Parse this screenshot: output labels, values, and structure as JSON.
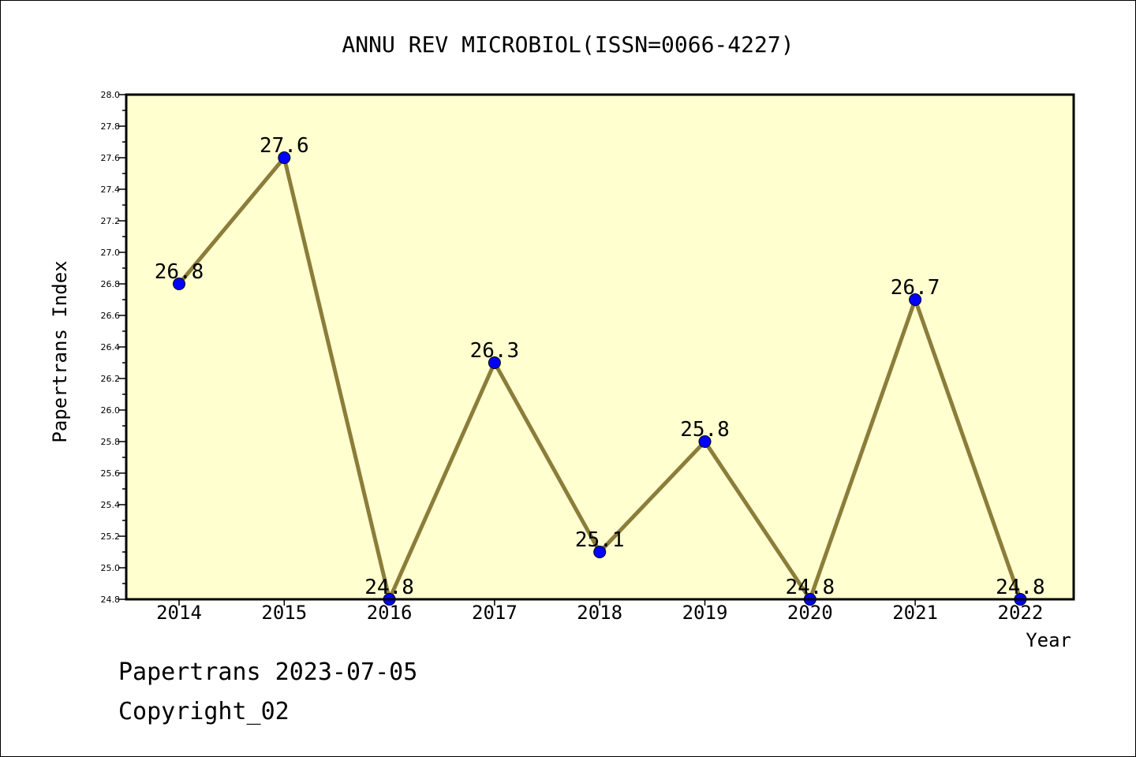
{
  "chart_data": {
    "type": "line",
    "title": "ANNU REV MICROBIOL(ISSN=0066-4227)",
    "xlabel": "Year",
    "ylabel": "Papertrans Index",
    "categories": [
      "2014",
      "2015",
      "2016",
      "2017",
      "2018",
      "2019",
      "2020",
      "2021",
      "2022"
    ],
    "values": [
      26.8,
      27.6,
      24.8,
      26.3,
      25.1,
      25.8,
      24.8,
      26.7,
      24.8
    ],
    "data_labels": [
      "26.8",
      "27.6",
      "24.8",
      "26.3",
      "25.1",
      "25.8",
      "24.8",
      "26.7",
      "24.8"
    ],
    "ylim": [
      24.8,
      28.0
    ],
    "y_ticks": [
      "24.8",
      "25.0",
      "25.2",
      "25.4",
      "25.6",
      "25.8",
      "26.0",
      "26.2",
      "26.4",
      "26.6",
      "26.8",
      "27.0",
      "27.2",
      "27.4",
      "27.6",
      "27.8",
      "28.0"
    ],
    "grid": false,
    "colors": {
      "plot_background": "#ffffd0",
      "line": "#8b7d3a",
      "marker": "#0000ff"
    }
  },
  "footer": {
    "line1": "Papertrans 2023-07-05",
    "line2": "Copyright_02"
  }
}
